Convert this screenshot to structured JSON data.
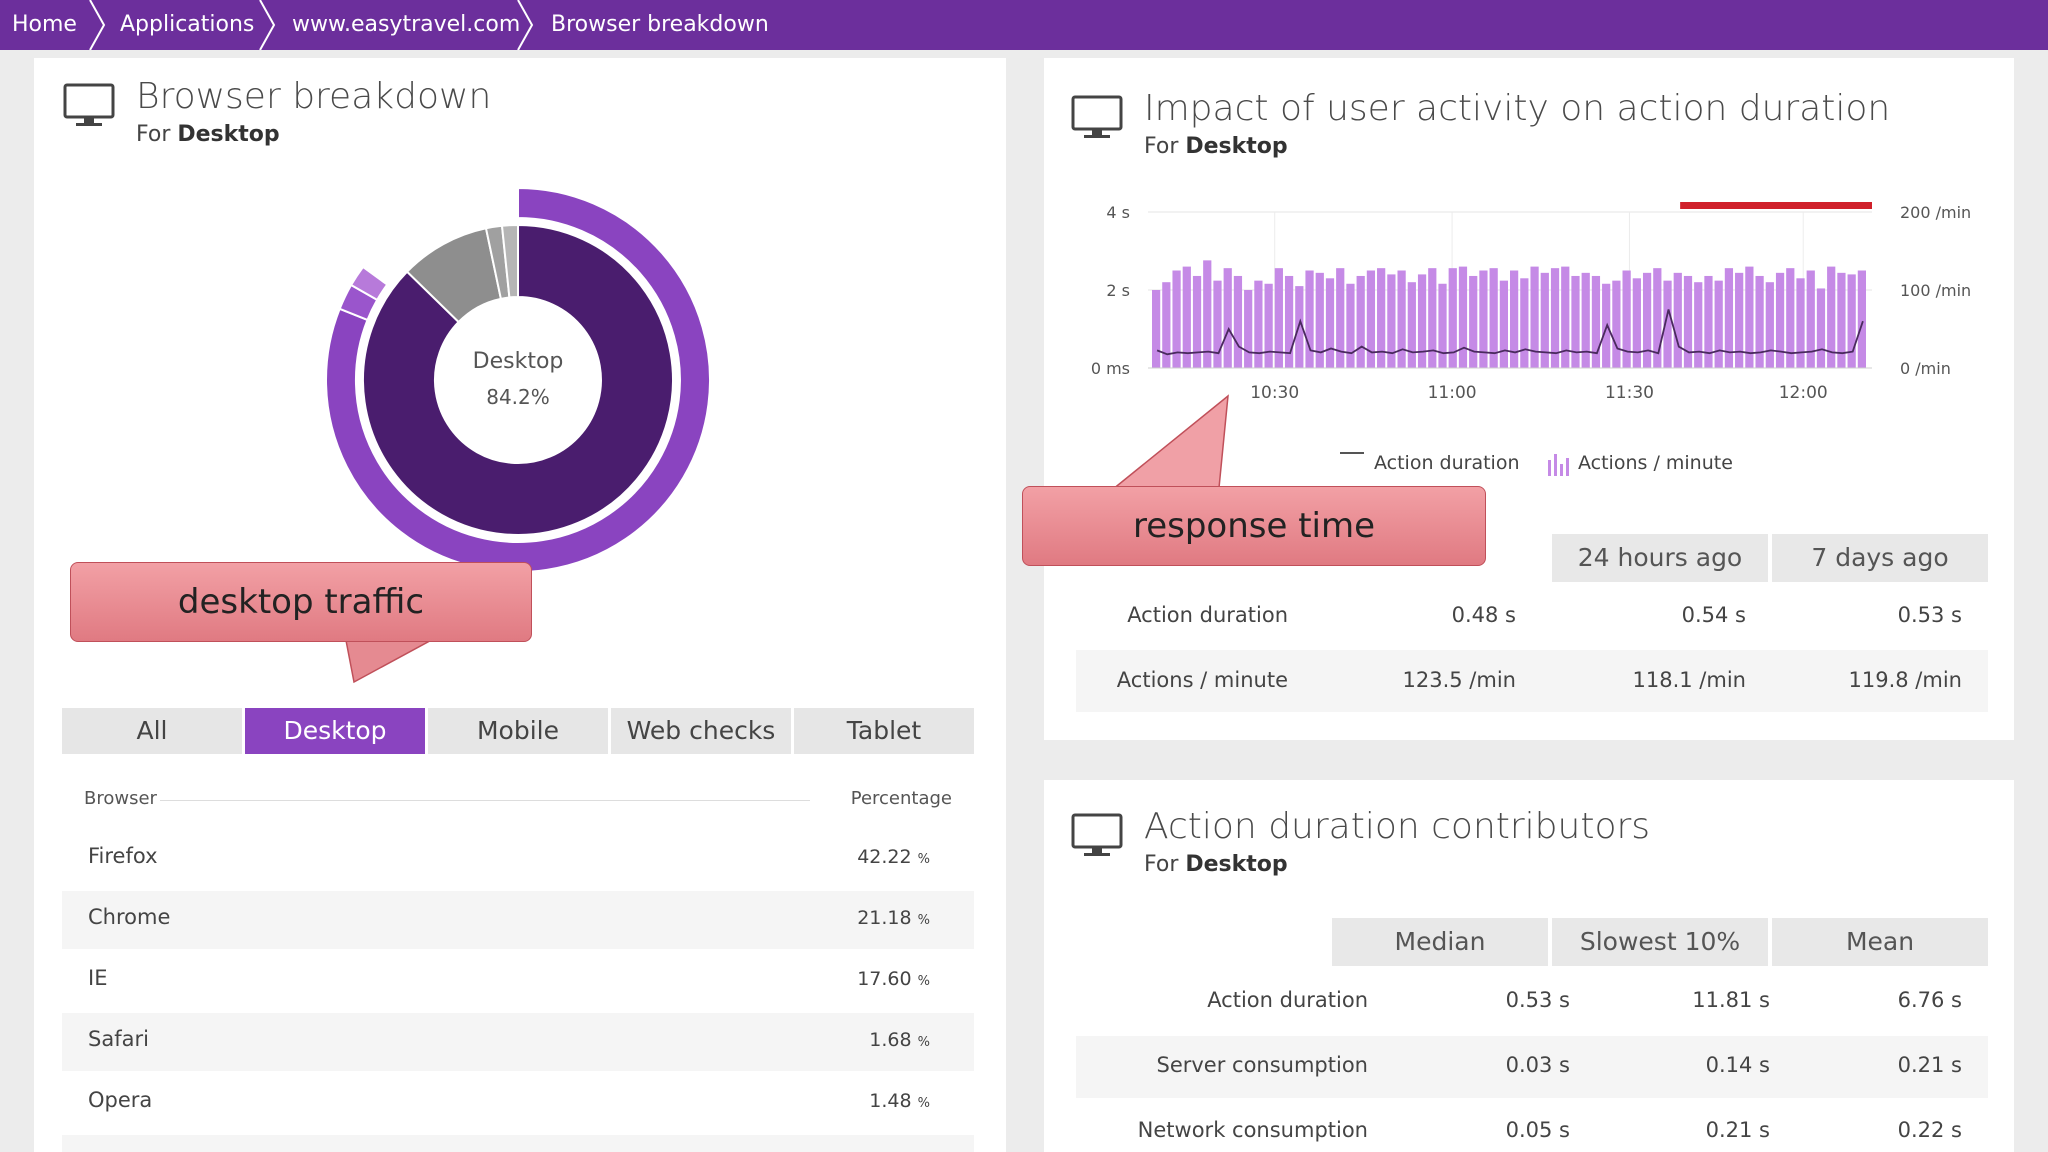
{
  "breadcrumb": {
    "items": [
      "Home",
      "Applications",
      "www.easytravel.com",
      "Browser breakdown"
    ]
  },
  "browser_panel": {
    "title": "Browser breakdown",
    "subtitle_prefix": "For",
    "subtitle_value": "Desktop",
    "donut_label": "Desktop",
    "donut_value": "84.2%",
    "tabs": [
      "All",
      "Desktop",
      "Mobile",
      "Web checks",
      "Tablet"
    ],
    "active_tab": "Desktop",
    "table": {
      "col_browser": "Browser",
      "col_percentage": "Percentage",
      "unit": "%",
      "rows": [
        {
          "name": "Firefox",
          "value": "42.22"
        },
        {
          "name": "Chrome",
          "value": "21.18"
        },
        {
          "name": "IE",
          "value": "17.60"
        },
        {
          "name": "Safari",
          "value": "1.68"
        },
        {
          "name": "Opera",
          "value": "1.48"
        }
      ]
    }
  },
  "impact_panel": {
    "title": "Impact of user activity on action duration",
    "subtitle_prefix": "For",
    "subtitle_value": "Desktop",
    "legend": {
      "line": "Action duration",
      "bars": "Actions / minute"
    },
    "compare_headers": [
      "24 hours ago",
      "7 days ago"
    ],
    "rows": [
      {
        "label": "Action duration",
        "now": "0.48 s",
        "day": "0.54 s",
        "week": "0.53 s"
      },
      {
        "label": "Actions / minute",
        "now": "123.5 /min",
        "day": "118.1 /min",
        "week": "119.8 /min"
      }
    ]
  },
  "chart_data": {
    "type": "bar",
    "title": "Impact of user activity on action duration",
    "x_ticks": [
      "10:30",
      "11:00",
      "11:30",
      "12:00"
    ],
    "y_left_ticks": [
      "0 ms",
      "2 s",
      "4 s"
    ],
    "y_right_ticks": [
      "0 /min",
      "100 /min",
      "200 /min"
    ],
    "ylim_left": [
      0,
      4
    ],
    "ylim_right": [
      0,
      200
    ],
    "series": [
      {
        "name": "Actions / minute",
        "axis": "right",
        "values": [
          100,
          110,
          125,
          130,
          118,
          138,
          112,
          128,
          118,
          100,
          112,
          108,
          128,
          118,
          105,
          125,
          122,
          115,
          128,
          108,
          118,
          125,
          128,
          120,
          125,
          110,
          120,
          128,
          108,
          128,
          130,
          118,
          125,
          128,
          112,
          125,
          115,
          130,
          122,
          128,
          130,
          118,
          122,
          118,
          108,
          112,
          125,
          115,
          122,
          128,
          112,
          122,
          118,
          110,
          118,
          112,
          128,
          122,
          130,
          118,
          110,
          122,
          128,
          115,
          125,
          102,
          130,
          122,
          120,
          125
        ]
      },
      {
        "name": "Action duration",
        "axis": "left",
        "values": [
          0.45,
          0.35,
          0.4,
          0.38,
          0.4,
          0.42,
          0.38,
          1.0,
          0.55,
          0.4,
          0.38,
          0.42,
          0.4,
          0.38,
          1.2,
          0.45,
          0.4,
          0.5,
          0.42,
          0.38,
          0.55,
          0.4,
          0.42,
          0.38,
          0.48,
          0.4,
          0.42,
          0.45,
          0.38,
          0.4,
          0.52,
          0.42,
          0.4,
          0.38,
          0.45,
          0.4,
          0.48,
          0.42,
          0.4,
          0.38,
          0.45,
          0.4,
          0.42,
          0.38,
          1.1,
          0.5,
          0.42,
          0.4,
          0.45,
          0.38,
          1.5,
          0.55,
          0.4,
          0.42,
          0.38,
          0.45,
          0.4,
          0.42,
          0.38,
          0.4,
          0.45,
          0.42,
          0.38,
          0.4,
          0.42,
          0.48,
          0.4,
          0.38,
          0.42,
          1.2
        ]
      }
    ]
  },
  "contributors_panel": {
    "title": "Action duration contributors",
    "subtitle_prefix": "For",
    "subtitle_value": "Desktop",
    "headers": [
      "Median",
      "Slowest 10%",
      "Mean"
    ],
    "rows": [
      {
        "label": "Action duration",
        "median": "0.53 s",
        "slowest": "11.81 s",
        "mean": "6.76 s"
      },
      {
        "label": "Server consumption",
        "median": "0.03 s",
        "slowest": "0.14 s",
        "mean": "0.21 s"
      },
      {
        "label": "Network consumption",
        "median": "0.05 s",
        "slowest": "0.21 s",
        "mean": "0.22 s"
      }
    ]
  },
  "callouts": {
    "desktop": "desktop traffic",
    "response": "response time"
  },
  "colors": {
    "brand": "#6c2f9c",
    "accent": "#8a44c0",
    "dark": "#4a1d6e",
    "bar": "#c58ae6",
    "alert": "#d0202a"
  }
}
